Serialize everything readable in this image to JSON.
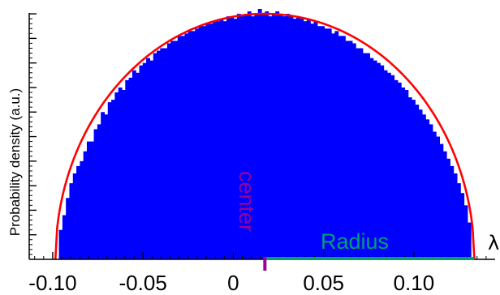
{
  "chart_data": {
    "type": "bar",
    "ylabel": "Probability density (a.u.)",
    "xlabel": "λ",
    "xlim": [
      -0.113,
      0.145
    ],
    "ylim": [
      0,
      1.03
    ],
    "x_ticks": [
      {
        "value": -0.1,
        "label": "-0.10"
      },
      {
        "value": -0.05,
        "label": "-0.05"
      },
      {
        "value": 0,
        "label": "0"
      },
      {
        "value": 0.05,
        "label": "0.05"
      },
      {
        "value": 0.1,
        "label": "0.10"
      }
    ],
    "histogram": {
      "bin_start": -0.0985,
      "bin_end": 0.1335,
      "bin_count": 120,
      "heights": [
        0.0,
        0.12,
        0.18,
        0.25,
        0.31,
        0.35,
        0.38,
        0.4,
        0.44,
        0.48,
        0.48,
        0.53,
        0.55,
        0.6,
        0.59,
        0.64,
        0.65,
        0.68,
        0.7,
        0.69,
        0.73,
        0.74,
        0.77,
        0.76,
        0.79,
        0.8,
        0.82,
        0.81,
        0.84,
        0.85,
        0.86,
        0.86,
        0.88,
        0.89,
        0.89,
        0.91,
        0.91,
        0.92,
        0.93,
        0.93,
        0.94,
        0.95,
        0.95,
        0.96,
        0.96,
        0.97,
        0.97,
        0.98,
        0.97,
        0.99,
        0.99,
        0.98,
        1.0,
        0.99,
        1.0,
        1.01,
        0.99,
        1.0,
        1.02,
        1.0,
        1.01,
        0.99,
        1.0,
        1.01,
        1.0,
        0.99,
        1.0,
        0.99,
        0.98,
        0.99,
        0.98,
        0.97,
        0.98,
        0.96,
        0.97,
        0.95,
        0.95,
        0.94,
        0.94,
        0.92,
        0.93,
        0.91,
        0.91,
        0.89,
        0.89,
        0.88,
        0.86,
        0.86,
        0.84,
        0.84,
        0.82,
        0.81,
        0.8,
        0.79,
        0.77,
        0.76,
        0.75,
        0.73,
        0.72,
        0.7,
        0.69,
        0.66,
        0.65,
        0.63,
        0.61,
        0.59,
        0.57,
        0.55,
        0.52,
        0.5,
        0.47,
        0.44,
        0.41,
        0.38,
        0.35,
        0.31,
        0.27,
        0.22,
        0.15,
        0.0
      ],
      "color": "#0000ff"
    },
    "fit_curve": {
      "type": "semicircle",
      "center": 0.0175,
      "radius": 0.116,
      "peak": 1.0,
      "color": "#ff0000"
    },
    "annotations": {
      "center_label": "center",
      "center_color": "#990099",
      "radius_label": "Radius",
      "radius_color": "#00a070"
    },
    "grid": false
  }
}
